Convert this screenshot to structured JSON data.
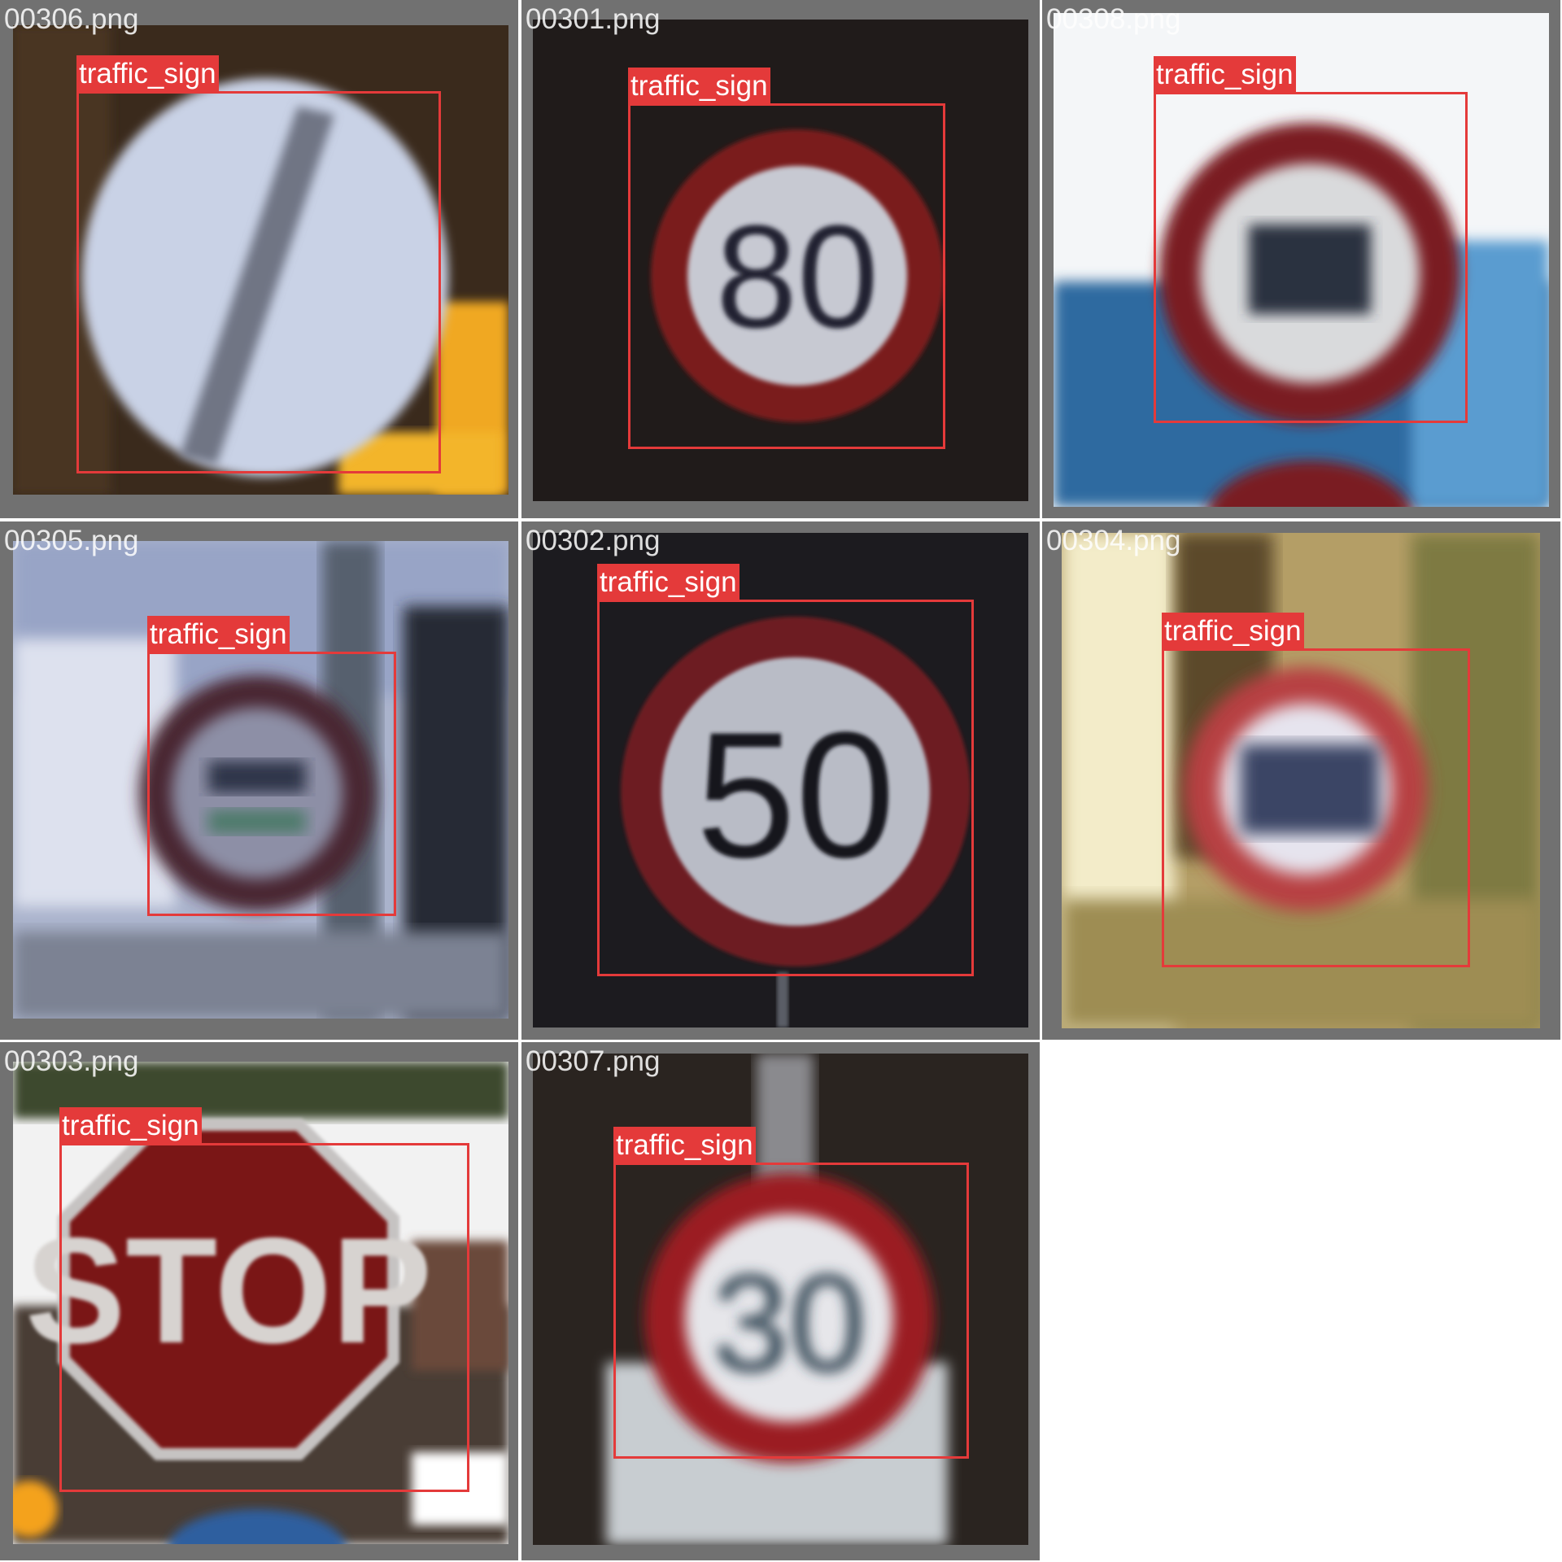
{
  "colors": {
    "grid_bg": "#717171",
    "box": "#e43a3a",
    "label_text": "#ffffff",
    "page_bg": "#ffffff"
  },
  "tiles": [
    {
      "filename": "00306.png",
      "label": "traffic_sign",
      "sign": "end-of-restrictions"
    },
    {
      "filename": "00301.png",
      "label": "traffic_sign",
      "sign": "speed-limit",
      "sign_text": "80"
    },
    {
      "filename": "00308.png",
      "label": "traffic_sign",
      "sign": "speed-limit-blurred"
    },
    {
      "filename": "00305.png",
      "label": "traffic_sign",
      "sign": "speed-limit-blurred"
    },
    {
      "filename": "00302.png",
      "label": "traffic_sign",
      "sign": "speed-limit",
      "sign_text": "50"
    },
    {
      "filename": "00304.png",
      "label": "traffic_sign",
      "sign": "speed-limit-blurred"
    },
    {
      "filename": "00303.png",
      "label": "traffic_sign",
      "sign": "stop",
      "sign_text": "STOP"
    },
    {
      "filename": "00307.png",
      "label": "traffic_sign",
      "sign": "speed-limit",
      "sign_text": "30"
    }
  ]
}
